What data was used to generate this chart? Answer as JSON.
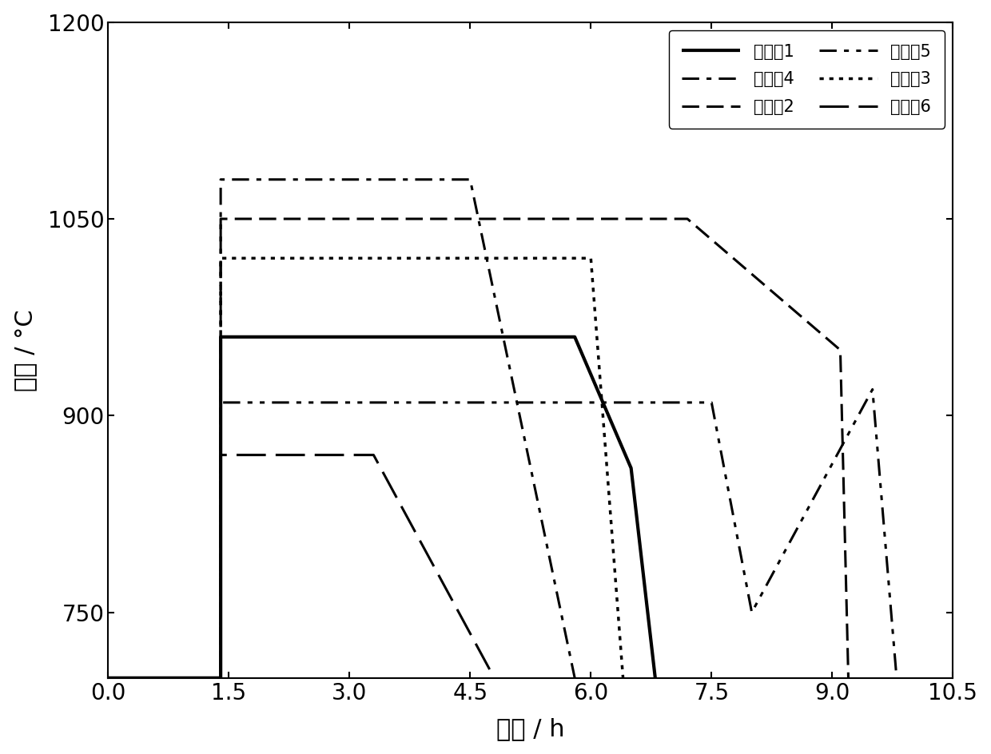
{
  "series": [
    {
      "name": "实施例1",
      "linestyle": "solid",
      "linewidth": 3.0,
      "x": [
        0,
        1.4,
        1.4,
        5.8,
        5.8,
        6.5,
        6.5,
        6.8,
        6.8
      ],
      "y": [
        700,
        700,
        960,
        960,
        960,
        860,
        860,
        700,
        700
      ]
    },
    {
      "name": "实施例2",
      "linestyle": "dashed",
      "linewidth": 2.2,
      "x": [
        0,
        1.4,
        1.4,
        6.5,
        6.5,
        7.2,
        7.2,
        9.1,
        9.1,
        9.2
      ],
      "y": [
        700,
        700,
        1050,
        1050,
        1050,
        1050,
        1050,
        950,
        950,
        700
      ]
    },
    {
      "name": "实施例3",
      "linestyle": "dotted",
      "linewidth": 2.5,
      "x": [
        0,
        1.4,
        1.4,
        6.0,
        6.0,
        6.4,
        6.4
      ],
      "y": [
        700,
        700,
        1020,
        1020,
        1020,
        700,
        700
      ]
    },
    {
      "name": "实施例4",
      "linestyle": "dashdot",
      "linewidth": 2.2,
      "x": [
        0,
        1.4,
        1.4,
        4.5,
        4.5,
        5.8,
        5.8
      ],
      "y": [
        700,
        700,
        1080,
        1080,
        1080,
        700,
        700
      ]
    },
    {
      "name": "实施例5",
      "linestyle": "dashdotdot",
      "linewidth": 2.2,
      "x": [
        0,
        1.4,
        1.4,
        7.5,
        7.5,
        8.0,
        8.0,
        9.5,
        9.5,
        9.8
      ],
      "y": [
        700,
        700,
        910,
        910,
        910,
        750,
        750,
        920,
        920,
        700
      ]
    },
    {
      "name": "实施例6",
      "linestyle": "longdash",
      "linewidth": 2.2,
      "x": [
        0,
        1.4,
        1.4,
        3.3,
        3.3,
        4.8,
        4.8
      ],
      "y": [
        700,
        700,
        870,
        870,
        870,
        700,
        700
      ]
    }
  ],
  "xlabel": "时间 / h",
  "ylabel": "温度 / °C",
  "xlim": [
    0,
    10.5
  ],
  "ylim": [
    700,
    1200
  ],
  "xticks": [
    0,
    1.5,
    3.0,
    4.5,
    6.0,
    7.5,
    9.0,
    10.5
  ],
  "yticks": [
    750,
    900,
    1050,
    1200
  ],
  "background_color": "#ffffff",
  "legend_fontsize": 15,
  "axis_fontsize": 22,
  "tick_fontsize": 20
}
